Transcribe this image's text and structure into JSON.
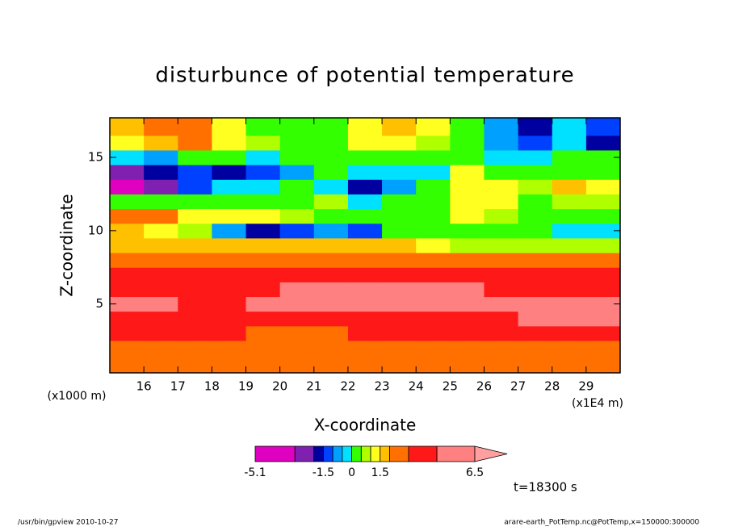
{
  "chart_data": {
    "type": "contourf",
    "title": "disturbunce of potential temperature",
    "xlabel": "X-coordinate",
    "ylabel": "Z-coordinate",
    "xunit": "(x1E4 m)",
    "yunit": "(x1000 m)",
    "annotation": "t=18300 s",
    "footer_left": "/usr/bin/gpview   2010-10-27",
    "footer_right": "arare-earth_PotTemp.nc@PotTemp,x=150000:300000",
    "xlim": [
      15,
      30
    ],
    "ylim": [
      0.3,
      17.7
    ],
    "xticks": [
      16,
      17,
      18,
      19,
      20,
      21,
      22,
      23,
      24,
      25,
      26,
      27,
      28,
      29
    ],
    "yticks": [
      5,
      10,
      15
    ],
    "x": [
      15.5,
      16.5,
      17.5,
      18.5,
      19.5,
      20.5,
      21.5,
      22.5,
      23.5,
      24.5,
      25.5,
      26.5,
      27.5,
      28.5,
      29.5
    ],
    "y": [
      1,
      2,
      3,
      4,
      5,
      6,
      7,
      8,
      9,
      10,
      11,
      12,
      13,
      14,
      15,
      16,
      17
    ],
    "z": [
      [
        2.5,
        2.5,
        2.5,
        2.5,
        2.5,
        2.5,
        2.5,
        2.5,
        2.5,
        2.5,
        2.5,
        2.5,
        2.5,
        2.5,
        2.5
      ],
      [
        2.8,
        2.8,
        2.8,
        2.7,
        2.6,
        2.6,
        2.6,
        2.7,
        2.8,
        2.8,
        2.9,
        2.9,
        2.9,
        2.9,
        2.9
      ],
      [
        3.5,
        3.5,
        3.2,
        3.1,
        2.8,
        2.7,
        2.7,
        3.1,
        3.2,
        3.3,
        3.5,
        3.6,
        3.7,
        3.8,
        3.8
      ],
      [
        4.0,
        4.0,
        4.0,
        4.0,
        4.2,
        3.8,
        3.8,
        4.0,
        4.0,
        4.0,
        4.2,
        4.3,
        4.5,
        4.5,
        4.6
      ],
      [
        4.8,
        4.8,
        4.2,
        4.3,
        4.6,
        4.8,
        4.9,
        4.9,
        4.9,
        4.8,
        4.8,
        4.8,
        4.8,
        4.8,
        4.8
      ],
      [
        4.0,
        4.0,
        4.0,
        4.0,
        4.2,
        4.7,
        4.7,
        4.7,
        4.8,
        4.7,
        4.5,
        4.0,
        4.0,
        4.0,
        4.0
      ],
      [
        3.5,
        3.5,
        3.5,
        3.5,
        3.5,
        3.5,
        3.5,
        3.5,
        3.5,
        3.5,
        3.5,
        3.5,
        3.5,
        3.5,
        3.5
      ],
      [
        2.5,
        2.5,
        2.5,
        2.5,
        2.5,
        2.5,
        2.5,
        2.5,
        2.5,
        2.5,
        2.5,
        2.5,
        2.5,
        2.5,
        2.5
      ],
      [
        1.8,
        1.8,
        1.8,
        1.8,
        1.7,
        1.7,
        1.7,
        1.7,
        1.7,
        1.3,
        0.8,
        0.6,
        0.6,
        0.6,
        0.6
      ],
      [
        1.5,
        1.2,
        0.8,
        -1.0,
        -1.7,
        -1.2,
        -0.7,
        -1.2,
        0.2,
        0.3,
        0.3,
        0.3,
        0.2,
        -0.3,
        -0.3
      ],
      [
        2.5,
        2.0,
        1.2,
        1.2,
        1.0,
        0.8,
        0.3,
        0.3,
        0.2,
        0.3,
        1.2,
        0.8,
        0.3,
        0.3,
        0.3
      ],
      [
        0.3,
        0.2,
        0.3,
        0.3,
        0.3,
        0.2,
        0.6,
        -0.3,
        0.2,
        0.3,
        1.2,
        1.2,
        0.3,
        0.8,
        0.7
      ],
      [
        -3.5,
        -2.2,
        -1.2,
        -0.5,
        -0.2,
        0.2,
        -0.5,
        -1.7,
        -0.7,
        0.2,
        1.2,
        1.3,
        0.7,
        1.7,
        1.2
      ],
      [
        -2.5,
        -1.7,
        -1.2,
        -1.7,
        -1.5,
        -0.7,
        0.2,
        -0.3,
        -0.3,
        -0.2,
        1.2,
        0.3,
        0.3,
        0.2,
        0.3
      ],
      [
        -0.3,
        -0.7,
        0.3,
        0.3,
        -0.2,
        0.2,
        0.2,
        0.2,
        0.3,
        0.2,
        0.2,
        -0.2,
        -0.3,
        0.3,
        0.2
      ],
      [
        1.2,
        1.5,
        2.0,
        1.2,
        0.6,
        0.2,
        0.3,
        1.0,
        1.3,
        0.8,
        0.2,
        -1.0,
        -1.5,
        -0.3,
        -1.7
      ],
      [
        1.8,
        2.2,
        2.5,
        1.2,
        0.3,
        0.3,
        0.3,
        1.2,
        1.7,
        1.2,
        0.3,
        -0.7,
        -1.7,
        -0.3,
        -1.2
      ]
    ],
    "colorbar": {
      "levels": [
        -5.1,
        -3,
        -2,
        -1.5,
        -1,
        -0.5,
        0,
        0.5,
        1,
        1.5,
        2,
        3,
        4.5,
        6.5
      ],
      "colors": [
        "#e000c0",
        "#8020b0",
        "#0000a0",
        "#0040ff",
        "#00a0ff",
        "#00e0ff",
        "#33ff00",
        "#b0ff00",
        "#ffff20",
        "#ffc000",
        "#ff7000",
        "#ff1818",
        "#ff8080",
        "#ffa0a0"
      ],
      "labels": [
        -5.1,
        -1.5,
        0,
        1.5,
        6.5
      ]
    }
  }
}
